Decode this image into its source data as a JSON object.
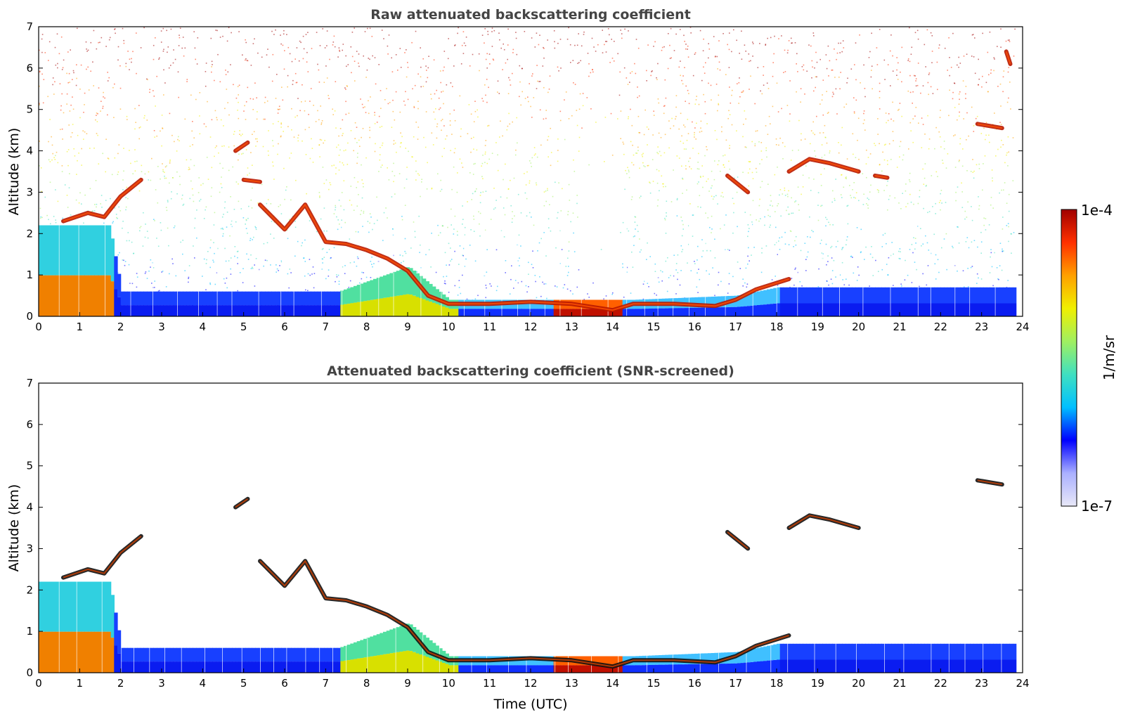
{
  "chart_data": [
    {
      "type": "heatmap",
      "title": "Raw attenuated backscattering coefficient",
      "ylabel": "Altitude (km)",
      "xlim": [
        0,
        24
      ],
      "ylim": [
        0,
        7
      ],
      "x_ticks": [
        "0",
        "1",
        "2",
        "3",
        "4",
        "5",
        "6",
        "7",
        "8",
        "9",
        "10",
        "11",
        "12",
        "13",
        "14",
        "15",
        "16",
        "17",
        "18",
        "19",
        "20",
        "21",
        "22",
        "23",
        "24"
      ],
      "y_ticks": [
        "0",
        "1",
        "2",
        "3",
        "4",
        "5",
        "6",
        "7"
      ],
      "features": [
        {
          "kind": "noise_background",
          "x_range": [
            0,
            23.8
          ]
        },
        {
          "kind": "boundary_layer",
          "x": [
            0,
            1.7,
            2,
            7.3,
            9,
            10,
            14.5,
            17,
            18,
            24
          ],
          "top": [
            2.2,
            2.2,
            0.6,
            0.6,
            1.2,
            0.4,
            0.4,
            0.5,
            0.7,
            0.7
          ]
        },
        {
          "kind": "cloud_layer",
          "points": [
            [
              0.6,
              2.3
            ],
            [
              1.2,
              2.5
            ],
            [
              1.6,
              2.4
            ],
            [
              2.0,
              2.9
            ],
            [
              2.5,
              3.3
            ]
          ]
        },
        {
          "kind": "cloud_layer",
          "points": [
            [
              4.8,
              4.0
            ],
            [
              5.1,
              4.2
            ]
          ]
        },
        {
          "kind": "cloud_layer",
          "points": [
            [
              5.0,
              3.3
            ],
            [
              5.4,
              3.25
            ]
          ]
        },
        {
          "kind": "cloud_layer",
          "points": [
            [
              5.4,
              2.7
            ],
            [
              6.0,
              2.1
            ],
            [
              6.5,
              2.7
            ],
            [
              7.0,
              1.8
            ],
            [
              7.5,
              1.75
            ],
            [
              8.0,
              1.6
            ],
            [
              8.5,
              1.4
            ],
            [
              9.0,
              1.1
            ],
            [
              9.5,
              0.5
            ],
            [
              10.0,
              0.3
            ],
            [
              11.0,
              0.3
            ],
            [
              12.0,
              0.35
            ],
            [
              13.0,
              0.3
            ],
            [
              14.0,
              0.15
            ],
            [
              14.5,
              0.3
            ],
            [
              15.5,
              0.3
            ],
            [
              16.5,
              0.25
            ],
            [
              17.0,
              0.4
            ],
            [
              17.5,
              0.65
            ],
            [
              18.3,
              0.9
            ]
          ]
        },
        {
          "kind": "cloud_layer",
          "points": [
            [
              16.8,
              3.4
            ],
            [
              17.3,
              3.0
            ]
          ]
        },
        {
          "kind": "cloud_layer",
          "points": [
            [
              18.3,
              3.5
            ],
            [
              18.8,
              3.8
            ],
            [
              19.3,
              3.7
            ],
            [
              20.0,
              3.5
            ]
          ]
        },
        {
          "kind": "cloud_layer",
          "points": [
            [
              20.4,
              3.4
            ],
            [
              20.7,
              3.35
            ]
          ]
        },
        {
          "kind": "cloud_layer",
          "points": [
            [
              22.9,
              4.65
            ],
            [
              23.5,
              4.55
            ]
          ]
        },
        {
          "kind": "cloud_layer",
          "points": [
            [
              23.6,
              6.4
            ],
            [
              23.7,
              6.1
            ]
          ]
        }
      ]
    },
    {
      "type": "heatmap",
      "title": "Attenuated backscattering coefficient (SNR-screened)",
      "xlabel": "Time (UTC)",
      "ylabel": "Altitude (km)",
      "xlim": [
        0,
        24
      ],
      "ylim": [
        0,
        7
      ],
      "x_ticks": [
        "0",
        "1",
        "2",
        "3",
        "4",
        "5",
        "6",
        "7",
        "8",
        "9",
        "10",
        "11",
        "12",
        "13",
        "14",
        "15",
        "16",
        "17",
        "18",
        "19",
        "20",
        "21",
        "22",
        "23",
        "24"
      ],
      "y_ticks": [
        "0",
        "1",
        "2",
        "3",
        "4",
        "5",
        "6",
        "7"
      ],
      "features": [
        {
          "kind": "boundary_layer",
          "x": [
            0,
            1.7,
            2,
            7.3,
            9,
            10,
            14.5,
            17,
            18,
            24
          ],
          "top": [
            2.2,
            2.2,
            0.6,
            0.6,
            1.2,
            0.4,
            0.4,
            0.5,
            0.7,
            0.7
          ]
        },
        {
          "kind": "cloud_layer",
          "points": [
            [
              0.6,
              2.3
            ],
            [
              1.2,
              2.5
            ],
            [
              1.6,
              2.4
            ],
            [
              2.0,
              2.9
            ],
            [
              2.5,
              3.3
            ]
          ]
        },
        {
          "kind": "cloud_layer",
          "points": [
            [
              4.8,
              4.0
            ],
            [
              5.1,
              4.2
            ]
          ]
        },
        {
          "kind": "cloud_layer",
          "points": [
            [
              5.4,
              2.7
            ],
            [
              6.0,
              2.1
            ],
            [
              6.5,
              2.7
            ],
            [
              7.0,
              1.8
            ],
            [
              7.5,
              1.75
            ],
            [
              8.0,
              1.6
            ],
            [
              8.5,
              1.4
            ],
            [
              9.0,
              1.1
            ],
            [
              9.5,
              0.5
            ],
            [
              10.0,
              0.3
            ],
            [
              11.0,
              0.3
            ],
            [
              12.0,
              0.35
            ],
            [
              13.0,
              0.3
            ],
            [
              14.0,
              0.15
            ],
            [
              14.5,
              0.3
            ],
            [
              15.5,
              0.3
            ],
            [
              16.5,
              0.25
            ],
            [
              17.0,
              0.4
            ],
            [
              17.5,
              0.65
            ],
            [
              18.3,
              0.9
            ]
          ]
        },
        {
          "kind": "cloud_layer",
          "points": [
            [
              16.8,
              3.4
            ],
            [
              17.3,
              3.0
            ]
          ]
        },
        {
          "kind": "cloud_layer",
          "points": [
            [
              18.3,
              3.5
            ],
            [
              18.8,
              3.8
            ],
            [
              19.3,
              3.7
            ],
            [
              20.0,
              3.5
            ]
          ]
        },
        {
          "kind": "cloud_layer",
          "points": [
            [
              22.9,
              4.65
            ],
            [
              23.5,
              4.55
            ]
          ]
        }
      ]
    }
  ],
  "colorbar": {
    "label": "1/m/sr",
    "max_label": "1e-4",
    "min_label": "1e-7",
    "colors": [
      "#e8e8f8",
      "#aab0ff",
      "#0000ff",
      "#00c0ff",
      "#40e0c0",
      "#a0f060",
      "#f0f000",
      "#ffa000",
      "#ff3000",
      "#a00000"
    ]
  }
}
